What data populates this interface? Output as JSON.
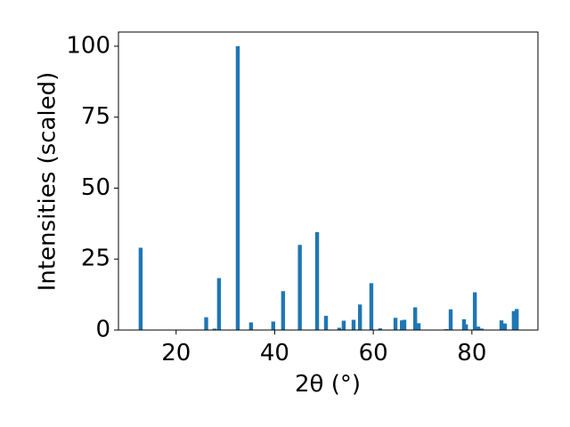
{
  "chart_data": {
    "type": "bar",
    "x_label": "2θ (°)",
    "y_label": "Intensities (scaled)",
    "x": [
      12.8,
      26.1,
      27.8,
      28.7,
      32.5,
      35.2,
      39.7,
      41.7,
      45.1,
      48.6,
      50.4,
      53.1,
      54.0,
      56.0,
      57.3,
      59.6,
      61.4,
      64.5,
      65.8,
      66.3,
      68.5,
      69.2,
      74.8,
      75.7,
      78.4,
      78.8,
      80.6,
      81.3,
      82.0,
      86.0,
      86.7,
      88.5,
      89.1
    ],
    "values": [
      29,
      4.5,
      0.5,
      18.3,
      100,
      2.7,
      3,
      13.7,
      30,
      34.5,
      5,
      0.8,
      3.3,
      3.6,
      9,
      16.5,
      0.6,
      4.3,
      3.4,
      3.6,
      8,
      2.4,
      0.3,
      7.3,
      3.8,
      2,
      13.3,
      1.2,
      0.5,
      3.4,
      2.3,
      6.7,
      7.4
    ],
    "color": "#1f77b4",
    "xlim": [
      8.3,
      93.4
    ],
    "xticks": [
      20,
      40,
      60,
      80
    ],
    "ylim": [
      0,
      105
    ],
    "yticks": [
      0,
      25,
      50,
      75,
      100
    ],
    "grid": false
  }
}
